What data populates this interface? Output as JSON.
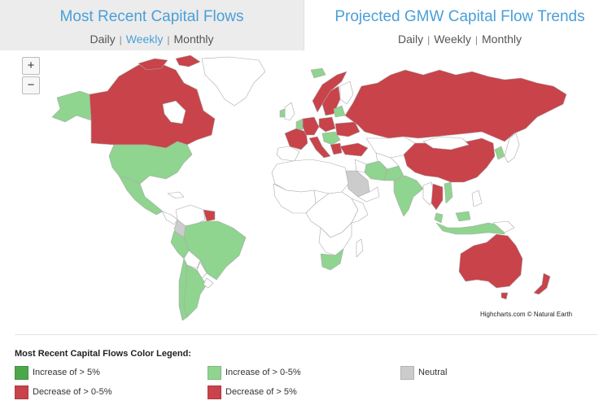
{
  "tabs": [
    {
      "title": "Most Recent Capital Flows",
      "periods": [
        "Daily",
        "Weekly",
        "Monthly"
      ],
      "active_period": "Weekly",
      "selected": true
    },
    {
      "title": "Projected GMW Capital Flow Trends",
      "periods": [
        "Daily",
        "Weekly",
        "Monthly"
      ],
      "active_period": "",
      "selected": false
    }
  ],
  "zoom": {
    "in_label": "+",
    "out_label": "−"
  },
  "credits": "Highcharts.com © Natural Earth",
  "legend": {
    "title": "Most Recent Capital Flows Color Legend:",
    "items": [
      {
        "label": "Increase of > 5%",
        "color": "#4aa84a"
      },
      {
        "label": "Increase of > 0-5%",
        "color": "#8fd48f"
      },
      {
        "label": "Neutral",
        "color": "#cccccc"
      },
      {
        "label": "Decrease of > 0-5%",
        "color": "#c9434a"
      },
      {
        "label": "Decrease of > 5%",
        "color": "#c9434a"
      }
    ]
  },
  "map_colors": {
    "green": "#8fd48f",
    "red": "#c9434a",
    "gray": "#cccccc",
    "none": "#ffffff",
    "border": "#aaaaaa"
  }
}
